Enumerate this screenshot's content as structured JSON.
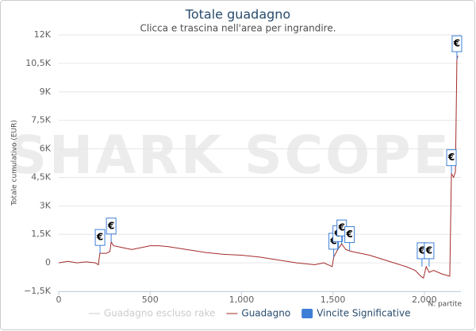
{
  "chart_data": {
    "type": "line",
    "title": "Totale guadagno",
    "subtitle": "Clicca e trascina nell'area per ingrandire.",
    "watermark": "SHARK SCOPE",
    "y_label": "Totale cumulativo (EUR)",
    "x_label": "N. partite",
    "xlim": [
      0,
      2200
    ],
    "xticks": [
      0,
      500,
      {
        "value": 1000,
        "label": "1,000"
      },
      {
        "value": 1500,
        "label": "1,500"
      },
      {
        "value": 2000,
        "label": "2,000"
      }
    ],
    "ylim": [
      -1500,
      12000
    ],
    "yticks": [
      {
        "value": -1500,
        "label": "−1,5K"
      },
      0,
      {
        "value": 1500,
        "label": "1,5K"
      },
      {
        "value": 3000,
        "label": "3K"
      },
      {
        "value": 4500,
        "label": "4,5K"
      },
      {
        "value": 6000,
        "label": "6K"
      },
      {
        "value": 7500,
        "label": "7,5K"
      },
      {
        "value": 9000,
        "label": "9K"
      },
      {
        "value": 10500,
        "label": "10,5K"
      },
      {
        "value": 12000,
        "label": "12K"
      }
    ],
    "grid": true,
    "series": [
      {
        "name": "Guadagno escluso rake",
        "color": "#cccccc",
        "visible": false
      },
      {
        "name": "Guadagno",
        "color": "#a52a2a",
        "visible": true,
        "x": [
          0,
          50,
          100,
          150,
          200,
          217,
          225,
          260,
          280,
          287,
          300,
          350,
          400,
          450,
          500,
          550,
          600,
          700,
          800,
          900,
          1000,
          1100,
          1200,
          1300,
          1400,
          1450,
          1496,
          1504,
          1526,
          1548,
          1570,
          1600,
          1700,
          1800,
          1900,
          1950,
          1980,
          1995,
          2010,
          2026,
          2050,
          2100,
          2139,
          2148,
          2160,
          2170,
          2178,
          2183
        ],
        "values": [
          0,
          80,
          0,
          50,
          0,
          -100,
          500,
          500,
          600,
          1100,
          900,
          800,
          700,
          800,
          900,
          900,
          850,
          700,
          550,
          450,
          400,
          300,
          150,
          0,
          -100,
          0,
          -200,
          300,
          700,
          1000,
          700,
          600,
          400,
          100,
          -200,
          -400,
          -700,
          -800,
          -200,
          -500,
          -400,
          -600,
          -700,
          4700,
          4500,
          4800,
          10700,
          10900
        ]
      },
      {
        "name": "Vincite Significative",
        "color": "#3d7fd6",
        "visible": true
      }
    ],
    "flags": {
      "title": "€",
      "x": [
        226,
        287,
        1504,
        1526,
        1548,
        1591,
        1987,
        2026,
        2148,
        2178
      ],
      "y": [
        500,
        1100,
        300,
        700,
        1000,
        650,
        -200,
        -200,
        4700,
        10700
      ]
    }
  }
}
